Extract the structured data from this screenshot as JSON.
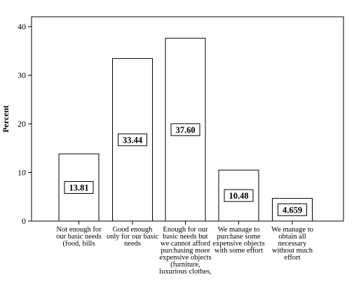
{
  "chart_data": {
    "type": "bar",
    "ylabel": "Percent",
    "xlabel": "",
    "ylim": [
      0,
      40
    ],
    "yticks": [
      0,
      10,
      20,
      30,
      40
    ],
    "categories": [
      [
        "Not enough for",
        "our basic needs",
        "(food, bills"
      ],
      [
        "Good enough",
        "only for our basic",
        "needs"
      ],
      [
        "Enough for our",
        "basic needs but",
        "we cannot afford",
        "purchasing more",
        "expensive objects",
        "(furniture,",
        "luxurious clothes,"
      ],
      [
        "We manage to",
        "purchase some",
        "expensive objects",
        "with some effort"
      ],
      [
        "We manage to",
        "obtain all",
        "necessary",
        "without much",
        "effort"
      ]
    ],
    "values": [
      13.81,
      33.44,
      37.6,
      10.48,
      4.659
    ],
    "data_labels": [
      "13.81",
      "33.44",
      "37.60",
      "10.48",
      "4.659"
    ],
    "grid": false,
    "legend": "none"
  }
}
